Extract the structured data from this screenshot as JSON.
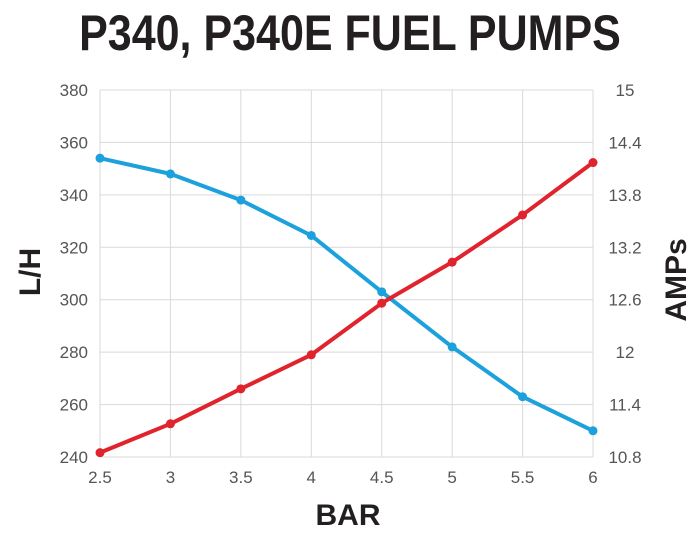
{
  "title": "P340, P340E FUEL PUMPS",
  "chart_data": {
    "type": "line",
    "title": "P340, P340E FUEL PUMPS",
    "xlabel": "BAR",
    "ylabel": "L/H",
    "y2label": "AMPs",
    "x": [
      2.5,
      3,
      3.5,
      4,
      4.5,
      5,
      5.5,
      6
    ],
    "x_tick_labels": [
      "2.5",
      "3",
      "3.5",
      "4",
      "4.5",
      "5",
      "5.5",
      "6"
    ],
    "ylim": [
      240,
      380
    ],
    "y_tick_labels": [
      "240",
      "260",
      "280",
      "300",
      "320",
      "340",
      "360",
      "380"
    ],
    "y2lim": [
      10.8,
      15
    ],
    "y2_tick_labels": [
      "10.8",
      "11.4",
      "12",
      "12.6",
      "13.2",
      "13.8",
      "14.4",
      "15"
    ],
    "grid": true,
    "series": [
      {
        "axis": "left",
        "color": "#1da1dc",
        "values": [
          354,
          348,
          338,
          324.5,
          303,
          282,
          263,
          250
        ]
      },
      {
        "axis": "right",
        "color": "#e0232d",
        "values": [
          10.85,
          11.18,
          11.58,
          11.97,
          12.56,
          13.03,
          13.57,
          14.17
        ]
      }
    ]
  }
}
